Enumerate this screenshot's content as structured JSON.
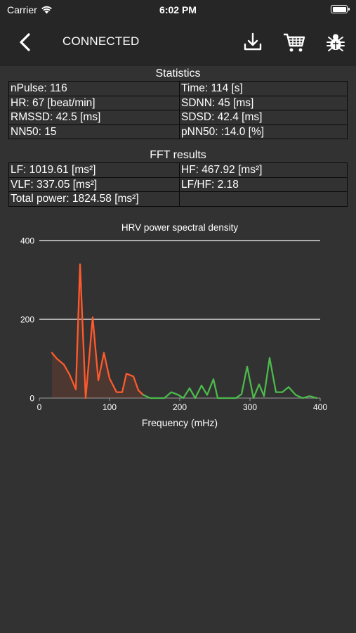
{
  "status_bar": {
    "carrier": "Carrier",
    "time": "6:02 PM"
  },
  "nav": {
    "title": "CONNECTED"
  },
  "statistics": {
    "heading": "Statistics",
    "rows": [
      [
        "nPulse: 116",
        "Time: 114 [s]"
      ],
      [
        "HR: 67 [beat/min]",
        "SDNN: 45 [ms]"
      ],
      [
        "RMSSD: 42.5 [ms]",
        "SDSD: 42.4 [ms]"
      ],
      [
        "NN50: 15",
        "pNN50: :14.0 [%]"
      ]
    ]
  },
  "fft": {
    "heading": "FFT results",
    "rows": [
      [
        "LF: 1019.61 [ms²]",
        "HF: 467.92 [ms²]"
      ],
      [
        "VLF: 337.05 [ms²]",
        "LF/HF: 2.18"
      ],
      [
        "Total power: 1824.58 [ms²]",
        ""
      ]
    ]
  },
  "chart_data": {
    "type": "line",
    "title": "HRV power spectral density",
    "xlabel": "Frequency (mHz)",
    "ylabel": "",
    "xlim": [
      0,
      400
    ],
    "ylim": [
      0,
      400
    ],
    "x_ticks": [
      "0",
      "100",
      "200",
      "300",
      "400"
    ],
    "y_ticks": [
      "0",
      "200",
      "400"
    ],
    "grid": "horizontal",
    "series": [
      {
        "color": "#ff5a2c",
        "fill": true,
        "points": [
          [
            18,
            115
          ],
          [
            25,
            100
          ],
          [
            35,
            85
          ],
          [
            43,
            60
          ],
          [
            52,
            22
          ],
          [
            58,
            340
          ],
          [
            66,
            0
          ],
          [
            76,
            205
          ],
          [
            84,
            45
          ],
          [
            92,
            115
          ],
          [
            100,
            50
          ],
          [
            110,
            15
          ],
          [
            118,
            15
          ],
          [
            124,
            62
          ],
          [
            134,
            55
          ],
          [
            141,
            20
          ],
          [
            148,
            8
          ]
        ]
      },
      {
        "color": "#4cba4c",
        "fill": false,
        "points": [
          [
            148,
            8
          ],
          [
            158,
            0
          ],
          [
            168,
            0
          ],
          [
            178,
            0
          ],
          [
            188,
            15
          ],
          [
            198,
            8
          ],
          [
            205,
            0
          ],
          [
            214,
            25
          ],
          [
            222,
            0
          ],
          [
            231,
            32
          ],
          [
            239,
            8
          ],
          [
            248,
            48
          ],
          [
            254,
            0
          ],
          [
            262,
            0
          ],
          [
            270,
            0
          ],
          [
            280,
            0
          ],
          [
            288,
            10
          ],
          [
            296,
            80
          ],
          [
            305,
            0
          ],
          [
            313,
            35
          ],
          [
            320,
            5
          ],
          [
            328,
            102
          ],
          [
            337,
            15
          ],
          [
            346,
            15
          ],
          [
            355,
            28
          ],
          [
            365,
            8
          ],
          [
            375,
            0
          ],
          [
            385,
            5
          ],
          [
            395,
            0
          ]
        ]
      }
    ]
  }
}
